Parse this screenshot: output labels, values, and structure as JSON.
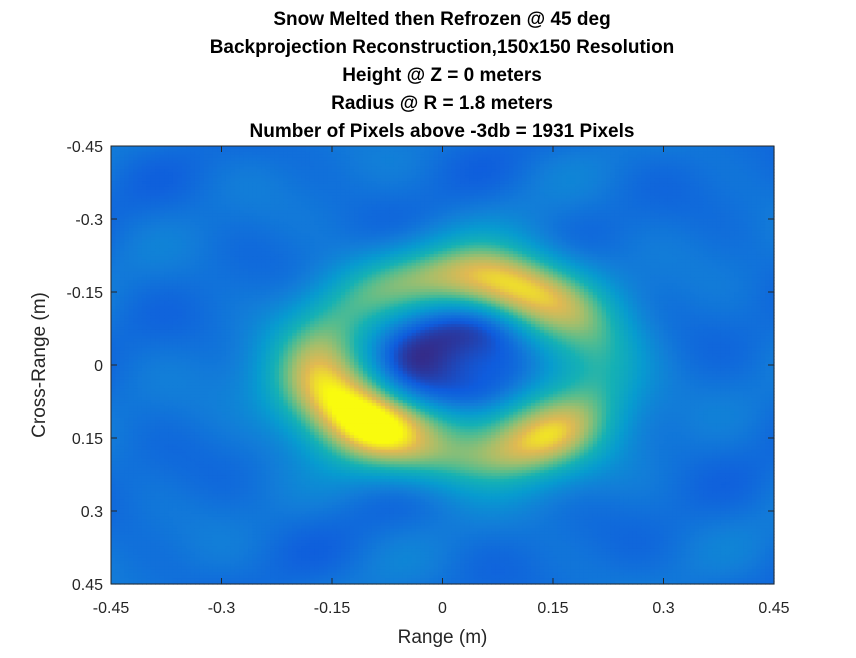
{
  "chart_data": {
    "type": "heatmap",
    "title_lines": [
      "Snow Melted then Refrozen @ 45 deg",
      "Backprojection Reconstruction,150x150 Resolution",
      "Height @ Z = 0 meters",
      "Radius @ R = 1.8 meters",
      "Number of Pixels above -3db = 1931 Pixels"
    ],
    "xlabel": "Range (m)",
    "ylabel": "Cross-Range (m)",
    "xlim": [
      -0.45,
      0.45
    ],
    "ylim": [
      -0.45,
      0.45
    ],
    "y_axis_reversed": true,
    "x_ticks": [
      "-0.45",
      "-0.3",
      "-0.15",
      "0",
      "0.15",
      "0.3",
      "0.45"
    ],
    "y_ticks": [
      "-0.45",
      "-0.3",
      "-0.15",
      "0",
      "0.15",
      "0.3",
      "0.45"
    ],
    "x_tick_values": [
      -0.45,
      -0.3,
      -0.15,
      0,
      0.15,
      0.3,
      0.45
    ],
    "y_tick_values": [
      -0.45,
      -0.3,
      -0.15,
      0,
      0.15,
      0.3,
      0.45
    ],
    "colormap": "parula",
    "grid": false,
    "resolution": [
      150,
      150
    ],
    "features": {
      "ring": {
        "center": [
          0.02,
          0.0
        ],
        "inner_radius": 0.14,
        "outer_radius": 0.24,
        "peak_intensity": 0.95
      },
      "central_minimum": {
        "center": [
          0.02,
          -0.01
        ],
        "radius": 0.1,
        "intensity": 0.05
      },
      "bright_lobes": [
        {
          "center": [
            0.08,
            -0.14
          ],
          "intensity": 0.95
        },
        {
          "center": [
            -0.08,
            0.1
          ],
          "intensity": 0.9
        },
        {
          "center": [
            0.12,
            0.14
          ],
          "intensity": 0.85
        },
        {
          "center": [
            -0.16,
            0.05
          ],
          "intensity": 0.7
        }
      ],
      "background_intensity": 0.25
    }
  }
}
